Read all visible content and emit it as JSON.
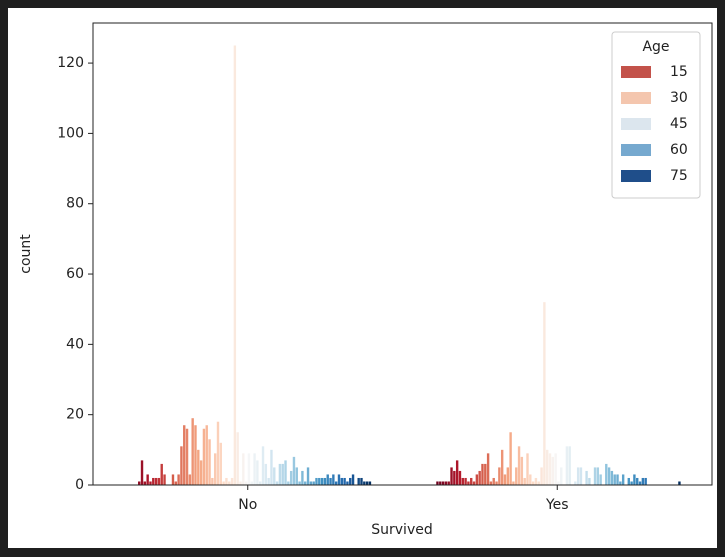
{
  "chart_data": {
    "type": "bar",
    "x_label": "Survived",
    "y_label": "count",
    "categories": [
      "No",
      "Yes"
    ],
    "groups": [
      {
        "values": [
          0,
          0,
          0,
          0,
          0,
          1,
          7,
          1,
          3,
          1,
          2,
          2,
          2,
          6,
          3,
          0,
          0,
          3,
          1,
          3,
          11,
          17,
          16,
          3,
          19,
          17,
          10,
          7,
          16,
          17,
          13,
          2,
          9,
          18,
          12,
          1,
          2,
          1,
          2,
          125,
          15,
          1,
          9,
          1,
          9,
          1,
          9,
          7,
          1,
          11,
          6,
          2,
          10,
          5,
          1,
          6,
          6,
          7,
          1,
          4,
          8,
          5,
          1,
          4,
          1,
          5,
          1,
          1,
          2,
          2,
          2,
          2,
          3,
          2,
          3,
          1,
          3,
          2,
          2,
          1,
          2,
          3,
          0,
          2,
          2,
          1,
          1,
          1
        ]
      },
      {
        "values": [
          0,
          1,
          1,
          1,
          1,
          1,
          5,
          4,
          7,
          4,
          2,
          2,
          1,
          2,
          1,
          3,
          4,
          6,
          6,
          9,
          1,
          2,
          1,
          5,
          10,
          3,
          5,
          15,
          1,
          5,
          11,
          8,
          2,
          9,
          3,
          1,
          2,
          1,
          5,
          52,
          10,
          9,
          8,
          9,
          1,
          5,
          0,
          11,
          11,
          0,
          1,
          5,
          5,
          0,
          4,
          2,
          0,
          5,
          5,
          3,
          0,
          6,
          5,
          4,
          3,
          3,
          1,
          3,
          0,
          2,
          1,
          3,
          2,
          1,
          2,
          2,
          0,
          0,
          0,
          0,
          0,
          0,
          0,
          0,
          0,
          0,
          0,
          1
        ]
      }
    ],
    "palette": [
      "#67001f",
      "#b2182b",
      "#d6604d",
      "#f4a582",
      "#fddbc7",
      "#f7f7f7",
      "#d1e5f0",
      "#92c5de",
      "#4393c3",
      "#2166ac",
      "#053061"
    ],
    "ylim": [
      0,
      131.4
    ],
    "yticks": [
      0,
      20,
      40,
      60,
      80,
      100,
      120
    ],
    "legend": {
      "title": "Age",
      "position": "upper right",
      "entries": [
        {
          "label": "15",
          "color": "#c3524a"
        },
        {
          "label": "30",
          "color": "#f4c6ae"
        },
        {
          "label": "45",
          "color": "#dce6ee"
        },
        {
          "label": "60",
          "color": "#76a9cf"
        },
        {
          "label": "75",
          "color": "#1f4e8a"
        }
      ]
    }
  }
}
